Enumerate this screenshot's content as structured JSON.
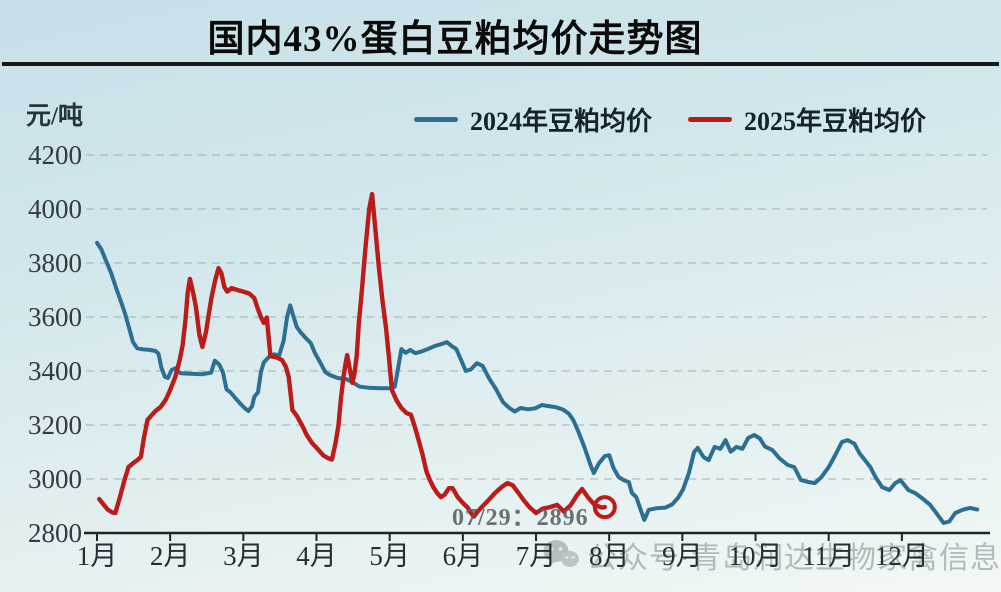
{
  "title": "国内43%蛋白豆粕均价走势图",
  "y_axis": {
    "unit": "元/吨",
    "ticks": [
      4200,
      4000,
      3800,
      3600,
      3400,
      3200,
      3000,
      2800
    ]
  },
  "x_axis": {
    "ticks": [
      "1月",
      "2月",
      "3月",
      "4月",
      "5月",
      "6月",
      "7月",
      "8月",
      "9月",
      "10月",
      "11月",
      "12月"
    ]
  },
  "legend": {
    "items": [
      {
        "label": "2024年豆粕均价",
        "color": "#2d6f92"
      },
      {
        "label": "2025年豆粕均价",
        "color": "#bb1c1a"
      }
    ]
  },
  "annotation": {
    "text": "07/29：2896",
    "value": 2896,
    "date": "07/29"
  },
  "watermark": {
    "text": "公众号·青岛润达生物家禽信息",
    "icon": "wechat-icon"
  },
  "colors": {
    "series_2024": "#2d6f92",
    "series_2025": "#bb1c1a",
    "grid": "#8fa6ae",
    "axis": "#1e2527",
    "background_top": "#c7e0e8",
    "background_bottom": "#f2f8f6"
  },
  "chart_data": {
    "type": "line",
    "title": "国内43%蛋白豆粕均价走势图",
    "ylabel": "元/吨",
    "ylim": [
      2800,
      4200
    ],
    "y_ticks": [
      2800,
      3000,
      3200,
      3400,
      3600,
      3800,
      4000,
      4200
    ],
    "x_categories": [
      "1月",
      "2月",
      "3月",
      "4月",
      "5月",
      "6月",
      "7月",
      "8月",
      "9月",
      "10月",
      "11月",
      "12月"
    ],
    "x_unit": "fractional month, 1.0 = Jan 1, 13.0 = Dec 31",
    "grid": true,
    "legend_position": "top",
    "series": [
      {
        "name": "2024年豆粕均价",
        "color": "#2d6f92",
        "width": 4,
        "points": [
          [
            1.0,
            3875
          ],
          [
            1.06,
            3850
          ],
          [
            1.12,
            3810
          ],
          [
            1.19,
            3765
          ],
          [
            1.27,
            3700
          ],
          [
            1.33,
            3655
          ],
          [
            1.38,
            3615
          ],
          [
            1.44,
            3558
          ],
          [
            1.49,
            3508
          ],
          [
            1.55,
            3484
          ],
          [
            1.63,
            3480
          ],
          [
            1.72,
            3478
          ],
          [
            1.8,
            3474
          ],
          [
            1.84,
            3464
          ],
          [
            1.88,
            3412
          ],
          [
            1.93,
            3378
          ],
          [
            1.97,
            3374
          ],
          [
            2.02,
            3404
          ],
          [
            2.07,
            3410
          ],
          [
            2.14,
            3392
          ],
          [
            2.28,
            3390
          ],
          [
            2.44,
            3388
          ],
          [
            2.56,
            3394
          ],
          [
            2.61,
            3438
          ],
          [
            2.67,
            3424
          ],
          [
            2.72,
            3396
          ],
          [
            2.77,
            3332
          ],
          [
            2.82,
            3322
          ],
          [
            2.89,
            3300
          ],
          [
            2.97,
            3276
          ],
          [
            3.03,
            3260
          ],
          [
            3.07,
            3252
          ],
          [
            3.12,
            3270
          ],
          [
            3.15,
            3304
          ],
          [
            3.2,
            3322
          ],
          [
            3.24,
            3396
          ],
          [
            3.28,
            3432
          ],
          [
            3.35,
            3452
          ],
          [
            3.42,
            3462
          ],
          [
            3.49,
            3458
          ],
          [
            3.55,
            3512
          ],
          [
            3.6,
            3602
          ],
          [
            3.64,
            3643
          ],
          [
            3.69,
            3598
          ],
          [
            3.73,
            3563
          ],
          [
            3.79,
            3541
          ],
          [
            3.86,
            3520
          ],
          [
            3.92,
            3504
          ],
          [
            3.98,
            3466
          ],
          [
            4.05,
            3432
          ],
          [
            4.12,
            3396
          ],
          [
            4.19,
            3384
          ],
          [
            4.29,
            3374
          ],
          [
            4.41,
            3370
          ],
          [
            4.51,
            3355
          ],
          [
            4.59,
            3342
          ],
          [
            4.71,
            3338
          ],
          [
            4.86,
            3336
          ],
          [
            5.01,
            3336
          ],
          [
            5.07,
            3342
          ],
          [
            5.11,
            3402
          ],
          [
            5.16,
            3481
          ],
          [
            5.22,
            3467
          ],
          [
            5.28,
            3478
          ],
          [
            5.35,
            3466
          ],
          [
            5.43,
            3472
          ],
          [
            5.51,
            3480
          ],
          [
            5.61,
            3492
          ],
          [
            5.71,
            3500
          ],
          [
            5.78,
            3507
          ],
          [
            5.85,
            3492
          ],
          [
            5.91,
            3481
          ],
          [
            5.97,
            3444
          ],
          [
            6.04,
            3400
          ],
          [
            6.11,
            3406
          ],
          [
            6.19,
            3429
          ],
          [
            6.27,
            3419
          ],
          [
            6.36,
            3372
          ],
          [
            6.45,
            3334
          ],
          [
            6.55,
            3284
          ],
          [
            6.64,
            3262
          ],
          [
            6.71,
            3250
          ],
          [
            6.79,
            3263
          ],
          [
            6.89,
            3258
          ],
          [
            6.99,
            3262
          ],
          [
            7.08,
            3274
          ],
          [
            7.17,
            3270
          ],
          [
            7.27,
            3266
          ],
          [
            7.37,
            3257
          ],
          [
            7.45,
            3242
          ],
          [
            7.51,
            3218
          ],
          [
            7.58,
            3174
          ],
          [
            7.66,
            3119
          ],
          [
            7.75,
            3048
          ],
          [
            7.79,
            3022
          ],
          [
            7.86,
            3058
          ],
          [
            7.94,
            3085
          ],
          [
            8.0,
            3088
          ],
          [
            8.06,
            3040
          ],
          [
            8.13,
            3007
          ],
          [
            8.2,
            2996
          ],
          [
            8.27,
            2988
          ],
          [
            8.31,
            2948
          ],
          [
            8.37,
            2933
          ],
          [
            8.44,
            2878
          ],
          [
            8.48,
            2848
          ],
          [
            8.54,
            2886
          ],
          [
            8.65,
            2892
          ],
          [
            8.77,
            2894
          ],
          [
            8.86,
            2906
          ],
          [
            8.94,
            2930
          ],
          [
            9.01,
            2962
          ],
          [
            9.09,
            3022
          ],
          [
            9.16,
            3100
          ],
          [
            9.21,
            3115
          ],
          [
            9.29,
            3081
          ],
          [
            9.36,
            3070
          ],
          [
            9.44,
            3119
          ],
          [
            9.52,
            3112
          ],
          [
            9.59,
            3144
          ],
          [
            9.66,
            3101
          ],
          [
            9.74,
            3119
          ],
          [
            9.82,
            3112
          ],
          [
            9.9,
            3152
          ],
          [
            9.98,
            3163
          ],
          [
            10.06,
            3150
          ],
          [
            10.13,
            3120
          ],
          [
            10.23,
            3107
          ],
          [
            10.33,
            3076
          ],
          [
            10.44,
            3052
          ],
          [
            10.53,
            3044
          ],
          [
            10.62,
            2996
          ],
          [
            10.72,
            2989
          ],
          [
            10.81,
            2985
          ],
          [
            10.9,
            3007
          ],
          [
            11.0,
            3044
          ],
          [
            11.09,
            3089
          ],
          [
            11.18,
            3137
          ],
          [
            11.26,
            3144
          ],
          [
            11.35,
            3131
          ],
          [
            11.42,
            3096
          ],
          [
            11.5,
            3068
          ],
          [
            11.57,
            3044
          ],
          [
            11.64,
            3007
          ],
          [
            11.73,
            2970
          ],
          [
            11.83,
            2959
          ],
          [
            11.91,
            2985
          ],
          [
            11.98,
            2996
          ],
          [
            12.09,
            2959
          ],
          [
            12.18,
            2948
          ],
          [
            12.28,
            2928
          ],
          [
            12.38,
            2906
          ],
          [
            12.46,
            2878
          ],
          [
            12.57,
            2837
          ],
          [
            12.65,
            2843
          ],
          [
            12.73,
            2874
          ],
          [
            12.83,
            2886
          ],
          [
            12.93,
            2893
          ],
          [
            13.03,
            2887
          ]
        ]
      },
      {
        "name": "2025年豆粕均价",
        "color": "#bb1c1a",
        "width": 4.4,
        "points": [
          [
            1.03,
            2926
          ],
          [
            1.09,
            2905
          ],
          [
            1.15,
            2886
          ],
          [
            1.21,
            2876
          ],
          [
            1.25,
            2874
          ],
          [
            1.31,
            2930
          ],
          [
            1.38,
            3000
          ],
          [
            1.43,
            3044
          ],
          [
            1.5,
            3060
          ],
          [
            1.56,
            3072
          ],
          [
            1.6,
            3082
          ],
          [
            1.64,
            3150
          ],
          [
            1.69,
            3219
          ],
          [
            1.73,
            3231
          ],
          [
            1.8,
            3252
          ],
          [
            1.87,
            3267
          ],
          [
            1.94,
            3294
          ],
          [
            2.0,
            3330
          ],
          [
            2.07,
            3378
          ],
          [
            2.13,
            3441
          ],
          [
            2.17,
            3495
          ],
          [
            2.21,
            3590
          ],
          [
            2.24,
            3690
          ],
          [
            2.27,
            3741
          ],
          [
            2.31,
            3694
          ],
          [
            2.35,
            3640
          ],
          [
            2.4,
            3534
          ],
          [
            2.44,
            3489
          ],
          [
            2.49,
            3545
          ],
          [
            2.53,
            3616
          ],
          [
            2.57,
            3680
          ],
          [
            2.62,
            3740
          ],
          [
            2.66,
            3781
          ],
          [
            2.7,
            3762
          ],
          [
            2.74,
            3712
          ],
          [
            2.78,
            3694
          ],
          [
            2.84,
            3707
          ],
          [
            2.92,
            3700
          ],
          [
            3.0,
            3694
          ],
          [
            3.08,
            3687
          ],
          [
            3.15,
            3670
          ],
          [
            3.19,
            3637
          ],
          [
            3.24,
            3600
          ],
          [
            3.28,
            3578
          ],
          [
            3.32,
            3598
          ],
          [
            3.37,
            3455
          ],
          [
            3.46,
            3450
          ],
          [
            3.53,
            3440
          ],
          [
            3.58,
            3416
          ],
          [
            3.62,
            3378
          ],
          [
            3.67,
            3256
          ],
          [
            3.73,
            3234
          ],
          [
            3.8,
            3200
          ],
          [
            3.87,
            3161
          ],
          [
            3.94,
            3133
          ],
          [
            4.02,
            3110
          ],
          [
            4.09,
            3088
          ],
          [
            4.15,
            3078
          ],
          [
            4.21,
            3072
          ],
          [
            4.26,
            3133
          ],
          [
            4.3,
            3200
          ],
          [
            4.33,
            3290
          ],
          [
            4.37,
            3382
          ],
          [
            4.4,
            3432
          ],
          [
            4.42,
            3459
          ],
          [
            4.45,
            3415
          ],
          [
            4.49,
            3356
          ],
          [
            4.52,
            3393
          ],
          [
            4.55,
            3460
          ],
          [
            4.58,
            3580
          ],
          [
            4.62,
            3700
          ],
          [
            4.67,
            3858
          ],
          [
            4.72,
            4000
          ],
          [
            4.76,
            4055
          ],
          [
            4.8,
            3940
          ],
          [
            4.85,
            3790
          ],
          [
            4.9,
            3663
          ],
          [
            4.95,
            3560
          ],
          [
            4.99,
            3452
          ],
          [
            5.03,
            3330
          ],
          [
            5.09,
            3293
          ],
          [
            5.16,
            3263
          ],
          [
            5.23,
            3244
          ],
          [
            5.29,
            3238
          ],
          [
            5.34,
            3196
          ],
          [
            5.4,
            3140
          ],
          [
            5.45,
            3090
          ],
          [
            5.5,
            3030
          ],
          [
            5.55,
            2996
          ],
          [
            5.6,
            2968
          ],
          [
            5.65,
            2948
          ],
          [
            5.7,
            2933
          ],
          [
            5.75,
            2942
          ],
          [
            5.81,
            2966
          ],
          [
            5.86,
            2966
          ],
          [
            5.93,
            2933
          ],
          [
            6.0,
            2911
          ],
          [
            6.07,
            2893
          ],
          [
            6.11,
            2874
          ],
          [
            6.15,
            2861
          ],
          [
            6.21,
            2882
          ],
          [
            6.28,
            2902
          ],
          [
            6.35,
            2922
          ],
          [
            6.44,
            2948
          ],
          [
            6.53,
            2970
          ],
          [
            6.61,
            2985
          ],
          [
            6.68,
            2977
          ],
          [
            6.76,
            2948
          ],
          [
            6.83,
            2922
          ],
          [
            6.91,
            2896
          ],
          [
            7.0,
            2874
          ],
          [
            7.09,
            2890
          ],
          [
            7.19,
            2896
          ],
          [
            7.29,
            2904
          ],
          [
            7.38,
            2880
          ],
          [
            7.47,
            2902
          ],
          [
            7.56,
            2940
          ],
          [
            7.63,
            2963
          ],
          [
            7.71,
            2932
          ],
          [
            7.8,
            2904
          ],
          [
            7.9,
            2894
          ],
          [
            7.94,
            2896
          ]
        ],
        "end_marker": {
          "x": 7.94,
          "y": 2896,
          "style": "open-circle"
        }
      }
    ],
    "annotations": [
      {
        "text": "07/29：2896",
        "attached_to": "2025年豆粕均价"
      }
    ]
  }
}
